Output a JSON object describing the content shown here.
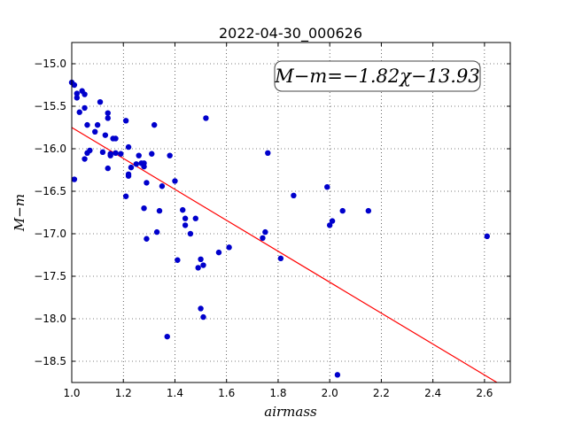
{
  "chart_data": {
    "type": "scatter",
    "title": "2022-04-30_000626",
    "xlabel": "airmass",
    "ylabel": "M−m",
    "xlim": [
      1.0,
      2.7
    ],
    "ylim": [
      -18.75,
      -14.75
    ],
    "xticks": [
      1.0,
      1.2,
      1.4,
      1.6,
      1.8,
      2.0,
      2.2,
      2.4,
      2.6
    ],
    "xtick_labels": [
      "1.0",
      "1.2",
      "1.4",
      "1.6",
      "1.8",
      "2.0",
      "2.2",
      "2.4",
      "2.6"
    ],
    "yticks": [
      -15.0,
      -15.5,
      -16.0,
      -16.5,
      -17.0,
      -17.5,
      -18.0,
      -18.5
    ],
    "ytick_labels": [
      "−15.0",
      "−15.5",
      "−16.0",
      "−16.5",
      "−17.0",
      "−17.5",
      "−18.0",
      "−18.5"
    ],
    "grid": true,
    "annotation": "M−m=−1.82χ−13.93",
    "fit": {
      "slope": -1.82,
      "intercept": -13.93,
      "color": "#ff0000"
    },
    "point_color": "#0000cc",
    "points": [
      [
        1.0,
        -15.22
      ],
      [
        1.01,
        -15.25
      ],
      [
        1.01,
        -16.36
      ],
      [
        1.02,
        -15.35
      ],
      [
        1.02,
        -15.4
      ],
      [
        1.03,
        -15.57
      ],
      [
        1.04,
        -15.32
      ],
      [
        1.05,
        -15.36
      ],
      [
        1.05,
        -16.12
      ],
      [
        1.05,
        -15.52
      ],
      [
        1.06,
        -15.72
      ],
      [
        1.06,
        -16.05
      ],
      [
        1.07,
        -16.02
      ],
      [
        1.09,
        -15.8
      ],
      [
        1.1,
        -15.72
      ],
      [
        1.11,
        -15.45
      ],
      [
        1.12,
        -16.04
      ],
      [
        1.13,
        -15.84
      ],
      [
        1.14,
        -15.64
      ],
      [
        1.14,
        -15.58
      ],
      [
        1.14,
        -16.23
      ],
      [
        1.15,
        -16.08
      ],
      [
        1.15,
        -16.06
      ],
      [
        1.16,
        -15.88
      ],
      [
        1.17,
        -15.88
      ],
      [
        1.17,
        -16.05
      ],
      [
        1.19,
        -16.06
      ],
      [
        1.21,
        -16.56
      ],
      [
        1.21,
        -15.67
      ],
      [
        1.22,
        -15.98
      ],
      [
        1.22,
        -16.32
      ],
      [
        1.22,
        -16.3
      ],
      [
        1.23,
        -16.22
      ],
      [
        1.25,
        -16.18
      ],
      [
        1.26,
        -16.08
      ],
      [
        1.27,
        -16.17
      ],
      [
        1.28,
        -16.21
      ],
      [
        1.28,
        -16.17
      ],
      [
        1.28,
        -16.7
      ],
      [
        1.29,
        -16.4
      ],
      [
        1.29,
        -17.06
      ],
      [
        1.31,
        -16.06
      ],
      [
        1.32,
        -15.72
      ],
      [
        1.33,
        -16.98
      ],
      [
        1.34,
        -16.73
      ],
      [
        1.35,
        -16.44
      ],
      [
        1.37,
        -18.21
      ],
      [
        1.38,
        -16.08
      ],
      [
        1.4,
        -16.38
      ],
      [
        1.41,
        -17.31
      ],
      [
        1.43,
        -16.72
      ],
      [
        1.44,
        -16.82
      ],
      [
        1.44,
        -16.9
      ],
      [
        1.46,
        -17.0
      ],
      [
        1.48,
        -16.82
      ],
      [
        1.49,
        -17.4
      ],
      [
        1.5,
        -17.88
      ],
      [
        1.5,
        -17.3
      ],
      [
        1.51,
        -17.37
      ],
      [
        1.51,
        -17.98
      ],
      [
        1.52,
        -15.64
      ],
      [
        1.57,
        -17.22
      ],
      [
        1.61,
        -17.16
      ],
      [
        1.74,
        -17.05
      ],
      [
        1.75,
        -16.98
      ],
      [
        1.76,
        -16.05
      ],
      [
        1.81,
        -17.29
      ],
      [
        1.86,
        -16.55
      ],
      [
        1.99,
        -16.45
      ],
      [
        2.0,
        -16.9
      ],
      [
        2.01,
        -16.85
      ],
      [
        2.03,
        -18.66
      ],
      [
        2.05,
        -16.73
      ],
      [
        2.15,
        -16.73
      ],
      [
        2.61,
        -17.03
      ]
    ]
  }
}
